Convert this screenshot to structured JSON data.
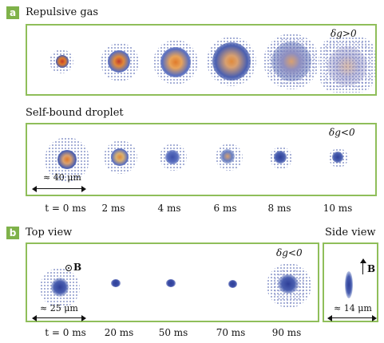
{
  "panel_a": {
    "badge": "a",
    "repulsive_title": "Repulsive gas",
    "repulsive_delta": "δg>0",
    "droplet_title": "Self-bound droplet",
    "droplet_delta": "δg<0",
    "scale_label": "≈ 40 μm",
    "times": [
      "t = 0 ms",
      "2 ms",
      "4 ms",
      "6 ms",
      "8 ms",
      "10 ms"
    ]
  },
  "panel_b": {
    "badge": "b",
    "top_title": "Top view",
    "side_title": "Side view",
    "delta": "δg<0",
    "field_label_top": "B",
    "field_label_side": "B",
    "scale_top": "≈ 25 μm",
    "scale_side": "≈ 14 μm",
    "times": [
      "t = 0 ms",
      "20 ms",
      "50 ms",
      "70 ms",
      "90 ms"
    ]
  },
  "colors": {
    "frame": "#8fbe5a",
    "badge": "#7fb24a",
    "cloud_blue": "#3d4fa8",
    "cloud_core": "#e07a2a"
  }
}
